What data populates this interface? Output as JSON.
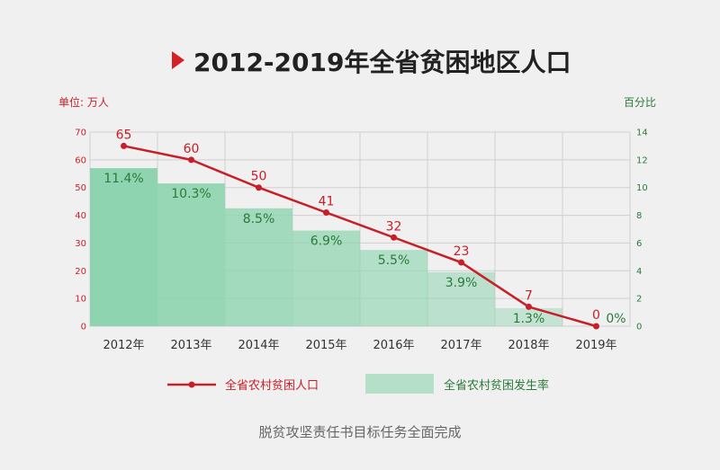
{
  "title": "2012-2019年全省贫困地区人口",
  "left_unit": "单位: 万人",
  "right_unit": "百分比",
  "footer": "脱贫攻坚责任书目标任务全面完成",
  "colors": {
    "line": "#c81e28",
    "bar": "#8fd4b0",
    "bar_label": "#2a7a3a",
    "right_axis": "#2a7a3a",
    "left_axis": "#c81e28",
    "title_marker": "#d62027"
  },
  "chart_data": {
    "type": "bar",
    "categories": [
      "2012年",
      "2013年",
      "2014年",
      "2015年",
      "2016年",
      "2017年",
      "2018年",
      "2019年"
    ],
    "series": [
      {
        "name": "全省农村贫困人口",
        "type": "line",
        "axis": "left",
        "values": [
          65,
          60,
          50,
          41,
          32,
          23,
          7,
          0
        ],
        "labels": [
          "65",
          "60",
          "50",
          "41",
          "32",
          "23",
          "7",
          "0"
        ]
      },
      {
        "name": "全省农村贫困发生率",
        "type": "bar",
        "axis": "right",
        "values": [
          11.4,
          10.3,
          8.5,
          6.9,
          5.5,
          3.9,
          1.3,
          0
        ],
        "labels": [
          "11.4%",
          "10.3%",
          "8.5%",
          "6.9%",
          "5.5%",
          "3.9%",
          "1.3%",
          "0%"
        ]
      }
    ],
    "left_axis": {
      "min": 0,
      "max": 70,
      "ticks": [
        "0",
        "10",
        "20",
        "30",
        "40",
        "50",
        "60",
        "70"
      ]
    },
    "right_axis": {
      "min": 0,
      "max": 14,
      "ticks": [
        "0",
        "2",
        "4",
        "6",
        "8",
        "10",
        "12",
        "14"
      ]
    },
    "grid": true,
    "legend": "bottom"
  }
}
